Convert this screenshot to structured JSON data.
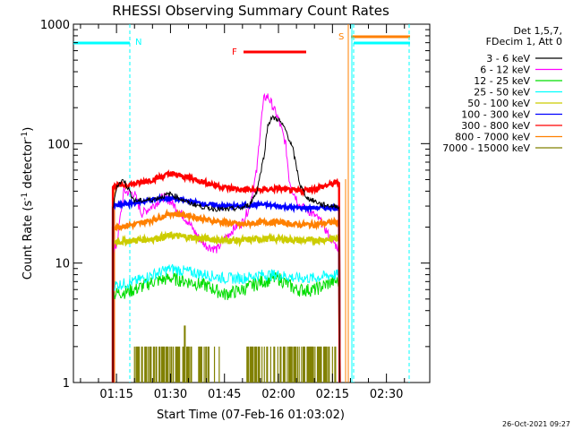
{
  "chart_data": {
    "type": "line",
    "title": "RHESSI Observing Summary Count Rates",
    "xlabel": "Start Time (07-Feb-16 01:03:02)",
    "ylabel_main": "Count Rate (s",
    "ylabel_sup1": "-1",
    "ylabel_mid": " detector",
    "ylabel_sup2": "-1",
    "ylabel_end": ")",
    "y_scale": "log",
    "ylim": [
      1,
      1000
    ],
    "xlim_minutes": [
      3.03,
      102.03
    ],
    "x_ticks": [
      {
        "label": "01:15",
        "minute": 15
      },
      {
        "label": "01:30",
        "minute": 30
      },
      {
        "label": "01:45",
        "minute": 45
      },
      {
        "label": "02:00",
        "minute": 60
      },
      {
        "label": "02:15",
        "minute": 75
      },
      {
        "label": "02:30",
        "minute": 90
      }
    ],
    "y_ticks": [
      {
        "label": "1",
        "value": 1
      },
      {
        "label": "10",
        "value": 10
      },
      {
        "label": "100",
        "value": 100
      },
      {
        "label": "1000",
        "value": 1000
      }
    ],
    "legend_header": [
      "Det 1,5,7,",
      "FDecim 1, Att 0"
    ],
    "legend_position": "right",
    "series": [
      {
        "name": "3 - 6 keV",
        "color": "#000000",
        "x": [
          14,
          15,
          17,
          20,
          25,
          30,
          35,
          40,
          45,
          50,
          52,
          54,
          56,
          57,
          58,
          60,
          62,
          64,
          66,
          68,
          70,
          72,
          75,
          77
        ],
        "y": [
          28,
          44,
          50,
          33,
          34,
          38,
          32,
          29,
          28,
          29,
          31,
          40,
          80,
          140,
          165,
          160,
          130,
          90,
          45,
          35,
          33,
          31,
          30,
          30
        ]
      },
      {
        "name": "6 - 12 keV",
        "color": "#ff00ff",
        "x": [
          14,
          15,
          17,
          20,
          22,
          25,
          28,
          30,
          33,
          35,
          38,
          40,
          43,
          45,
          48,
          50,
          52,
          54,
          55,
          56,
          57,
          58,
          60,
          62,
          63,
          64,
          65,
          66,
          68,
          70,
          72,
          74,
          76,
          77
        ],
        "y": [
          12,
          14,
          40,
          38,
          26,
          30,
          36,
          33,
          26,
          22,
          16,
          14,
          13,
          16,
          20,
          22,
          30,
          60,
          140,
          240,
          250,
          220,
          160,
          100,
          50,
          40,
          35,
          30,
          28,
          25,
          22,
          17,
          14,
          13
        ]
      },
      {
        "name": "12 - 25 keV",
        "color": "#00dd00",
        "x": [
          14,
          20,
          25,
          30,
          35,
          40,
          45,
          50,
          55,
          60,
          65,
          70,
          75,
          77
        ],
        "y": [
          5.5,
          6,
          7,
          7.5,
          7,
          6.5,
          5.5,
          6,
          7,
          7.5,
          6,
          6,
          7,
          7
        ]
      },
      {
        "name": "25 - 50 keV",
        "color": "#00ffff",
        "x": [
          14,
          20,
          25,
          30,
          35,
          40,
          45,
          50,
          55,
          60,
          65,
          70,
          75,
          77
        ],
        "y": [
          6.5,
          7,
          8,
          9,
          8.5,
          8,
          7.5,
          7.5,
          8,
          8,
          7.5,
          7.5,
          8,
          8
        ]
      },
      {
        "name": "50 - 100 keV",
        "color": "#cccc00",
        "x": [
          14,
          20,
          25,
          30,
          35,
          40,
          45,
          50,
          55,
          60,
          65,
          70,
          75,
          77
        ],
        "y": [
          15,
          15.5,
          16,
          17,
          16.5,
          16,
          15.5,
          15.5,
          16,
          16,
          15.5,
          15.5,
          16,
          16
        ]
      },
      {
        "name": "100 - 300 keV",
        "color": "#0000ff",
        "x": [
          14,
          20,
          25,
          30,
          35,
          40,
          45,
          50,
          55,
          60,
          65,
          70,
          75,
          77
        ],
        "y": [
          30,
          32,
          34,
          35,
          33,
          31,
          30,
          30,
          31,
          30,
          29,
          29,
          29,
          29
        ]
      },
      {
        "name": "300 - 800 keV",
        "color": "#ff0000",
        "x": [
          14,
          20,
          25,
          30,
          35,
          40,
          45,
          50,
          55,
          60,
          65,
          70,
          75,
          77
        ],
        "y": [
          44,
          46,
          50,
          56,
          52,
          47,
          43,
          41,
          41,
          42,
          40,
          42,
          46,
          48
        ]
      },
      {
        "name": "800 - 7000 keV",
        "color": "#ff8000",
        "x": [
          14,
          20,
          25,
          30,
          35,
          40,
          45,
          50,
          55,
          60,
          65,
          70,
          75,
          77
        ],
        "y": [
          20,
          21,
          23,
          26,
          25,
          23,
          22,
          21,
          22,
          22,
          21,
          21,
          22,
          22
        ]
      },
      {
        "name": "7000 - 15000 keV",
        "color": "#808000",
        "x": [
          20,
          22,
          24,
          26,
          28,
          30,
          32,
          34,
          36,
          38,
          40,
          42,
          44,
          46,
          48,
          50,
          52,
          54,
          56,
          58,
          60,
          62,
          64,
          66,
          68,
          70,
          72,
          74,
          76
        ],
        "y": [
          2,
          1,
          2,
          2,
          1,
          2,
          2,
          3,
          2,
          1,
          2,
          2,
          1,
          1,
          1,
          1,
          1,
          1,
          2,
          1,
          2,
          1,
          2,
          1,
          2,
          1,
          2,
          2,
          1
        ]
      }
    ],
    "annotations": [
      {
        "label": "N",
        "color": "#00ffff",
        "position": "top-left"
      },
      {
        "label": "F",
        "color": "#ff0000",
        "position": "top-center"
      },
      {
        "label": "S",
        "color": "#ff8000",
        "position": "top-right"
      }
    ],
    "footer_date": "26-Oct-2021 09:27"
  }
}
